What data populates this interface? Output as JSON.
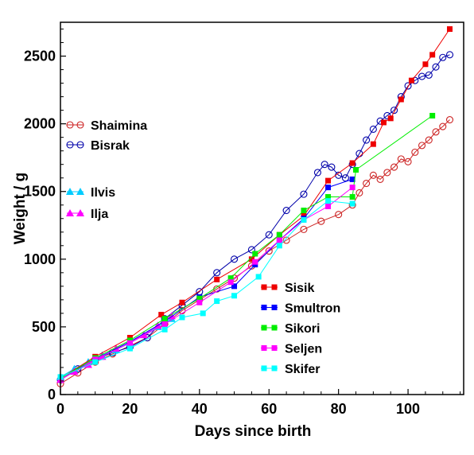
{
  "chart_data": {
    "type": "line",
    "title": "",
    "xlabel": "Days since birth",
    "ylabel": "Weight / g",
    "xlim": [
      0,
      116
    ],
    "ylim": [
      0,
      2750
    ],
    "x_ticks": [
      "0",
      "20",
      "40",
      "60",
      "80",
      "100"
    ],
    "y_ticks": [
      "0",
      "500",
      "1000",
      "1500",
      "2000",
      "2500"
    ],
    "grid": false,
    "legends": [
      {
        "placement": "upper-left",
        "entries": [
          "Shaimina",
          "Bisrak"
        ]
      },
      {
        "placement": "middle-left",
        "entries": [
          "Ilvis",
          "Ilja"
        ]
      },
      {
        "placement": "lower-right",
        "entries": [
          "Sisik",
          "Smultron",
          "Sikori",
          "Seljen",
          "Skifer"
        ]
      }
    ],
    "series": [
      {
        "name": "Shaimina",
        "color": "#cc2222",
        "marker": "open-circle",
        "x": [
          0,
          5,
          10,
          15,
          20,
          25,
          30,
          35,
          40,
          45,
          50,
          55,
          60,
          65,
          70,
          75,
          80,
          84,
          86,
          88,
          90,
          92,
          94,
          96,
          98,
          100,
          102,
          104,
          106,
          108,
          110,
          112
        ],
        "y": [
          80,
          160,
          240,
          300,
          360,
          420,
          520,
          620,
          700,
          780,
          860,
          950,
          1060,
          1140,
          1220,
          1280,
          1330,
          1400,
          1490,
          1560,
          1620,
          1590,
          1640,
          1680,
          1740,
          1720,
          1790,
          1840,
          1880,
          1940,
          1980,
          2030
        ]
      },
      {
        "name": "Bisrak",
        "color": "#0000aa",
        "marker": "open-circle",
        "x": [
          0,
          5,
          10,
          15,
          20,
          25,
          30,
          35,
          40,
          45,
          50,
          55,
          60,
          65,
          70,
          74,
          76,
          78,
          80,
          82,
          84,
          86,
          88,
          90,
          92,
          94,
          96,
          98,
          100,
          102,
          104,
          106,
          108,
          110,
          112
        ],
        "y": [
          110,
          190,
          260,
          310,
          350,
          420,
          560,
          660,
          760,
          900,
          1000,
          1070,
          1180,
          1360,
          1480,
          1640,
          1700,
          1680,
          1620,
          1600,
          1700,
          1780,
          1880,
          1960,
          2020,
          2060,
          2100,
          2200,
          2280,
          2320,
          2350,
          2360,
          2420,
          2490,
          2510
        ]
      },
      {
        "name": "Ilvis",
        "color": "#00ccff",
        "marker": "filled-triangle",
        "x": [
          0,
          4,
          8,
          12,
          16,
          20,
          24,
          28,
          32
        ],
        "y": [
          130,
          190,
          240,
          290,
          330,
          380,
          440,
          500,
          560
        ]
      },
      {
        "name": "Ilja",
        "color": "#ff00ff",
        "marker": "filled-triangle",
        "x": [
          0,
          4,
          8,
          12,
          16,
          20,
          24,
          28,
          32
        ],
        "y": [
          110,
          170,
          220,
          280,
          340,
          390,
          440,
          510,
          580
        ]
      },
      {
        "name": "Sisik",
        "color": "#ee0000",
        "marker": "filled-square",
        "x": [
          0,
          10,
          20,
          29,
          35,
          45,
          55,
          63,
          70,
          77,
          84,
          90,
          93,
          95,
          98,
          101,
          105,
          107,
          112
        ],
        "y": [
          120,
          280,
          420,
          590,
          680,
          850,
          1000,
          1180,
          1320,
          1580,
          1710,
          1850,
          2010,
          2040,
          2180,
          2320,
          2440,
          2510,
          2700
        ]
      },
      {
        "name": "Smultron",
        "color": "#0000ff",
        "marker": "filled-square",
        "x": [
          0,
          10,
          20,
          30,
          40,
          50,
          56,
          63,
          70,
          77,
          84
        ],
        "y": [
          110,
          260,
          390,
          540,
          720,
          800,
          960,
          1140,
          1300,
          1530,
          1590
        ]
      },
      {
        "name": "Sikori",
        "color": "#00ee00",
        "marker": "filled-square",
        "x": [
          0,
          10,
          20,
          30,
          40,
          49,
          56,
          63,
          70,
          77,
          84,
          85,
          107
        ],
        "y": [
          120,
          270,
          400,
          560,
          710,
          860,
          1040,
          1180,
          1360,
          1460,
          1460,
          1660,
          2060
        ]
      },
      {
        "name": "Seljen",
        "color": "#ff00ff",
        "marker": "filled-square",
        "x": [
          0,
          10,
          20,
          30,
          40,
          49,
          56,
          63,
          70,
          77,
          84
        ],
        "y": [
          110,
          260,
          380,
          520,
          680,
          830,
          980,
          1140,
          1290,
          1390,
          1530
        ]
      },
      {
        "name": "Skifer",
        "color": "#00ffff",
        "marker": "filled-square",
        "x": [
          0,
          10,
          20,
          30,
          35,
          41,
          45,
          50,
          57,
          63,
          70,
          77,
          84
        ],
        "y": [
          130,
          240,
          340,
          480,
          570,
          600,
          690,
          730,
          870,
          1100,
          1290,
          1430,
          1410
        ]
      }
    ]
  }
}
